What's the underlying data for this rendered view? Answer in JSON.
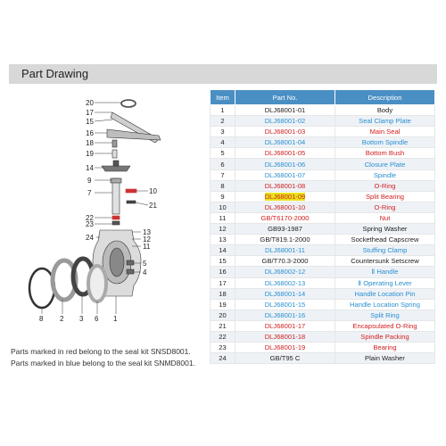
{
  "section_title": "Part Drawing",
  "table": {
    "headers": [
      "Item",
      "Part No.",
      "Description"
    ],
    "rows": [
      {
        "item": "1",
        "part_no": "DLJ68001-01",
        "description": "Body",
        "color": "black"
      },
      {
        "item": "2",
        "part_no": "DLJ68001-02",
        "description": "Seal Clamp Plate",
        "color": "blue"
      },
      {
        "item": "3",
        "part_no": "DLJ68001-03",
        "description": "Main Seal",
        "color": "red"
      },
      {
        "item": "4",
        "part_no": "DLJ68001-04",
        "description": "Bottom Spindle",
        "color": "blue"
      },
      {
        "item": "5",
        "part_no": "DLJ68001-05",
        "description": "Bottom Bush",
        "color": "red"
      },
      {
        "item": "6",
        "part_no": "DLJ68001-06",
        "description": "Closure Plate",
        "color": "blue"
      },
      {
        "item": "7",
        "part_no": "DLJ68001-07",
        "description": "Spindle",
        "color": "blue"
      },
      {
        "item": "8",
        "part_no": "DLJ68001-08",
        "description": "O-Ring",
        "color": "red"
      },
      {
        "item": "9",
        "part_no": "DLJ68001-09",
        "description": "Split Bearing",
        "color": "red",
        "highlight": true
      },
      {
        "item": "10",
        "part_no": "DLJ68001-10",
        "description": "O-Ring",
        "color": "red"
      },
      {
        "item": "11",
        "part_no": "GB/T6170-2000",
        "description": "Nut",
        "color": "red"
      },
      {
        "item": "12",
        "part_no": "GB93-1987",
        "description": "Spring Washer",
        "color": "black"
      },
      {
        "item": "13",
        "part_no": "GB/T819.1-2000",
        "description": "Sockethead Capscrew",
        "color": "black"
      },
      {
        "item": "14",
        "part_no": "DLJ68001-11",
        "description": "Stuffing Clamp",
        "color": "blue"
      },
      {
        "item": "15",
        "part_no": "GB/T70.3-2000",
        "description": "Countersunk Setscrew",
        "color": "black"
      },
      {
        "item": "16",
        "part_no": "DLJ68002-12",
        "description": "Ⅱ Handle",
        "color": "blue"
      },
      {
        "item": "17",
        "part_no": "DLJ68002-13",
        "description": "Ⅱ Operating Lever",
        "color": "blue"
      },
      {
        "item": "18",
        "part_no": "DLJ68001-14",
        "description": "Handle Location Pin",
        "color": "blue"
      },
      {
        "item": "19",
        "part_no": "DLJ68001-15",
        "description": "Handle Location Spring",
        "color": "blue"
      },
      {
        "item": "20",
        "part_no": "DLJ68001-16",
        "description": "Split Ring",
        "color": "blue"
      },
      {
        "item": "21",
        "part_no": "DLJ68001-17",
        "description": "Encapsulated O-Ring",
        "color": "red"
      },
      {
        "item": "22",
        "part_no": "DLJ68001-18",
        "description": "Spindle Packing",
        "color": "red"
      },
      {
        "item": "23",
        "part_no": "DLJ68001-19",
        "description": "Bearing",
        "color": "red"
      },
      {
        "item": "24",
        "part_no": "GB/T95 C",
        "description": "Plain Washer",
        "color": "black"
      }
    ]
  },
  "drawing_labels": {
    "l20": "20",
    "l17": "17",
    "l15": "15",
    "l16": "16",
    "l18": "18",
    "l19": "19",
    "l14": "14",
    "l9": "9",
    "l7": "7",
    "l10": "10",
    "l21": "21",
    "l22": "22",
    "l23": "23",
    "l24": "24",
    "l13": "13",
    "l12": "12",
    "l11": "11",
    "l5": "5",
    "l4": "4",
    "l8": "8",
    "l2": "2",
    "l3": "3",
    "l6": "6",
    "l1": "1"
  },
  "notes": {
    "red": "Parts marked in red  belong to the seal kit SNSD8001.",
    "blue": "Parts marked in blue  belong to the seal kit SNMD8001."
  }
}
